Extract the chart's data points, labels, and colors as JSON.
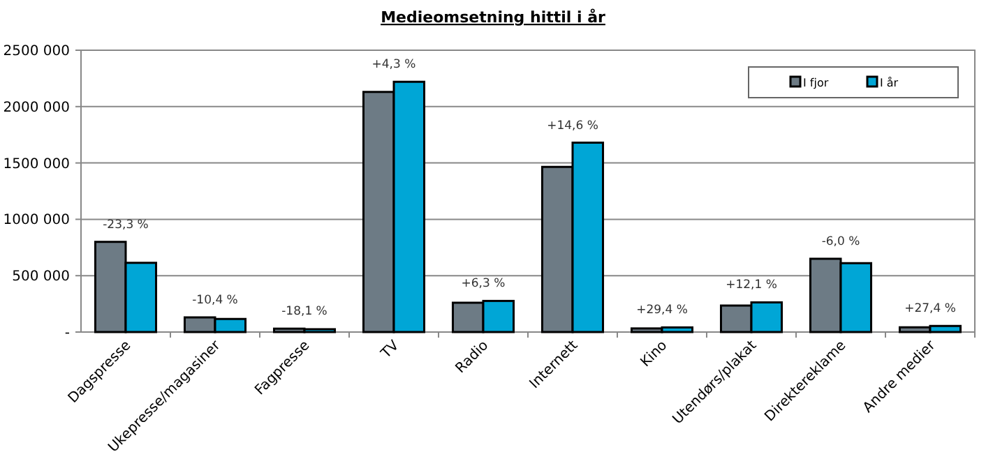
{
  "chart_data": {
    "type": "bar",
    "title": "Medieomsetning hittil i år",
    "categories": [
      "Dagspresse",
      "Ukepresse/magasiner",
      "Fagpresse",
      "TV",
      "Radio",
      "Internett",
      "Kino",
      "Utendørs/plakat",
      "Direktereklame",
      "Andre medier"
    ],
    "series": [
      {
        "name": "I fjor",
        "color": "#6d7b85",
        "values": [
          800000,
          130000,
          30000,
          2130000,
          260000,
          1465000,
          32000,
          235000,
          650000,
          42000
        ]
      },
      {
        "name": "I år",
        "color": "#00a6d6",
        "values": [
          614000,
          116000,
          25000,
          2220000,
          276000,
          1680000,
          41000,
          263000,
          611000,
          54000
        ]
      }
    ],
    "ylim": [
      0,
      2500000
    ],
    "yticks": [
      {
        "value": 0,
        "label": "-"
      },
      {
        "value": 500000,
        "label": "500 000"
      },
      {
        "value": 1000000,
        "label": "1000 000"
      },
      {
        "value": 1500000,
        "label": "1500 000"
      },
      {
        "value": 2000000,
        "label": "2000 000"
      },
      {
        "value": 2500000,
        "label": "2500 000"
      }
    ],
    "grid": "y",
    "legend": "top right",
    "annotations": [
      {
        "text": "-23,3 %",
        "x": "Dagspresse",
        "y": 800000
      },
      {
        "text": "-10,4 %",
        "x": "Ukepresse/magasiner",
        "y": 130000
      },
      {
        "text": "-18,1 %",
        "x": "Fagpresse",
        "y": 30000
      },
      {
        "text": "+4,3 %",
        "x": "TV",
        "y": 2220000
      },
      {
        "text": "+6,3 %",
        "x": "Radio",
        "y": 276000
      },
      {
        "text": "+14,6 %",
        "x": "Internett",
        "y": 1680000
      },
      {
        "text": "+29,4 %",
        "x": "Kino",
        "y": 41000
      },
      {
        "text": "+12,1 %",
        "x": "Utendørs/plakat",
        "y": 263000
      },
      {
        "text": "-6,0 %",
        "x": "Direktereklame",
        "y": 650000
      },
      {
        "text": "+27,4 %",
        "x": "Andre medier",
        "y": 54000
      }
    ]
  }
}
